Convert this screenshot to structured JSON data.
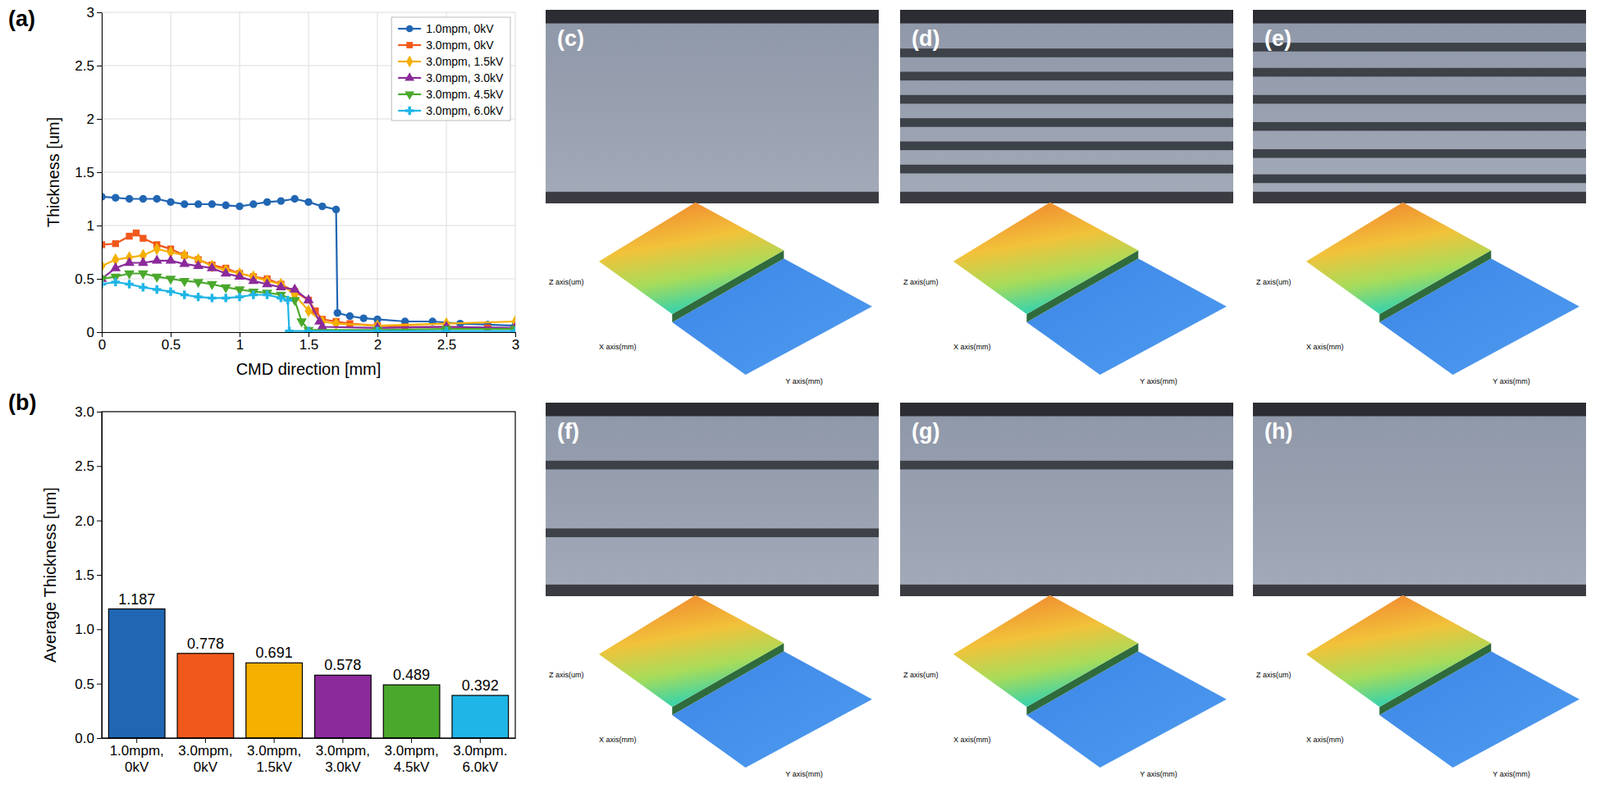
{
  "chart_data": [
    {
      "type": "line",
      "panel_label": "(a)",
      "x_label": "CMD direction [mm]",
      "y_label": "Thickness [um]",
      "xlim": [
        0,
        3
      ],
      "ylim": [
        0,
        3
      ],
      "xticks": [
        0,
        0.5,
        1,
        1.5,
        2,
        2.5,
        3
      ],
      "yticks": [
        0,
        0.5,
        1,
        1.5,
        2,
        2.5,
        3
      ],
      "grid": true,
      "legend": "top-right",
      "series": [
        {
          "name": "1.0mpm, 0kV",
          "color": "#2166b3",
          "marker": "circle",
          "x": [
            0,
            0.1,
            0.2,
            0.3,
            0.4,
            0.5,
            0.6,
            0.7,
            0.8,
            0.9,
            1.0,
            1.1,
            1.2,
            1.3,
            1.4,
            1.5,
            1.6,
            1.7,
            1.71,
            1.8,
            1.9,
            2.0,
            2.2,
            2.4,
            2.6,
            2.8,
            3.0
          ],
          "values": [
            1.27,
            1.26,
            1.25,
            1.25,
            1.25,
            1.22,
            1.2,
            1.2,
            1.2,
            1.19,
            1.18,
            1.2,
            1.22,
            1.23,
            1.25,
            1.22,
            1.18,
            1.15,
            0.18,
            0.15,
            0.13,
            0.12,
            0.1,
            0.1,
            0.08,
            0.07,
            0.06
          ]
        },
        {
          "name": "3.0mpm, 0kV",
          "color": "#f0581c",
          "marker": "square",
          "x": [
            0,
            0.1,
            0.2,
            0.25,
            0.3,
            0.4,
            0.5,
            0.6,
            0.7,
            0.8,
            0.9,
            1.0,
            1.1,
            1.2,
            1.3,
            1.4,
            1.5,
            1.55,
            1.6,
            1.7,
            1.8,
            2.0,
            2.2,
            2.5,
            2.8,
            3.0
          ],
          "values": [
            0.82,
            0.83,
            0.9,
            0.93,
            0.88,
            0.82,
            0.78,
            0.72,
            0.68,
            0.63,
            0.6,
            0.55,
            0.52,
            0.5,
            0.45,
            0.38,
            0.3,
            0.2,
            0.12,
            0.1,
            0.08,
            0.06,
            0.05,
            0.05,
            0.04,
            0.03
          ]
        },
        {
          "name": "3.0mpm, 1.5kV",
          "color": "#f5b000",
          "marker": "diamond",
          "x": [
            0,
            0.1,
            0.2,
            0.3,
            0.4,
            0.5,
            0.6,
            0.7,
            0.8,
            0.9,
            1.0,
            1.1,
            1.2,
            1.3,
            1.4,
            1.5,
            1.6,
            1.7,
            2.0,
            2.5,
            3.0
          ],
          "values": [
            0.62,
            0.68,
            0.7,
            0.72,
            0.78,
            0.75,
            0.72,
            0.68,
            0.62,
            0.58,
            0.55,
            0.52,
            0.48,
            0.45,
            0.35,
            0.2,
            0.1,
            0.08,
            0.06,
            0.08,
            0.1
          ]
        },
        {
          "name": "3.0mpm, 3.0kV",
          "color": "#8b2a9b",
          "marker": "triangle",
          "x": [
            0,
            0.1,
            0.2,
            0.3,
            0.4,
            0.5,
            0.6,
            0.7,
            0.8,
            0.9,
            1.0,
            1.1,
            1.2,
            1.3,
            1.4,
            1.5,
            1.58,
            1.6,
            2.0,
            2.5,
            3.0
          ],
          "values": [
            0.5,
            0.6,
            0.65,
            0.65,
            0.67,
            0.67,
            0.64,
            0.62,
            0.6,
            0.55,
            0.52,
            0.48,
            0.45,
            0.42,
            0.4,
            0.3,
            0.1,
            0.05,
            0.04,
            0.05,
            0.04
          ]
        },
        {
          "name": "3.0mpm. 4.5kV",
          "color": "#4aa82c",
          "marker": "triangle-down",
          "x": [
            0,
            0.1,
            0.2,
            0.3,
            0.4,
            0.5,
            0.6,
            0.7,
            0.8,
            0.9,
            1.0,
            1.1,
            1.2,
            1.3,
            1.4,
            1.45,
            1.5,
            2.0,
            2.5,
            3.0
          ],
          "values": [
            0.5,
            0.52,
            0.55,
            0.55,
            0.52,
            0.5,
            0.48,
            0.47,
            0.45,
            0.42,
            0.4,
            0.38,
            0.37,
            0.35,
            0.3,
            0.1,
            0.02,
            0.02,
            0.03,
            0.03
          ]
        },
        {
          "name": "3.0mpm, 6.0kV",
          "color": "#1fb5e6",
          "marker": "plus",
          "x": [
            0,
            0.1,
            0.2,
            0.3,
            0.4,
            0.5,
            0.6,
            0.7,
            0.8,
            0.9,
            1.0,
            1.1,
            1.2,
            1.3,
            1.35,
            1.36,
            1.5,
            2.0,
            2.5,
            3.0
          ],
          "values": [
            0.45,
            0.47,
            0.45,
            0.42,
            0.4,
            0.38,
            0.35,
            0.33,
            0.32,
            0.32,
            0.33,
            0.35,
            0.35,
            0.32,
            0.3,
            0.01,
            0.01,
            0.01,
            0.01,
            0.01
          ]
        }
      ]
    },
    {
      "type": "bar",
      "panel_label": "(b)",
      "y_label": "Average Thickness [um]",
      "categories": [
        "1.0mpm, 0kV",
        "3.0mpm, 0kV",
        "3.0mpm, 1.5kV",
        "3.0mpm, 3.0kV",
        "3.0mpm, 4.5kV",
        "3.0mpm. 6.0kV"
      ],
      "values": [
        1.187,
        0.778,
        0.691,
        0.578,
        0.489,
        0.392
      ],
      "colors": [
        "#2166b3",
        "#f0581c",
        "#f5b000",
        "#8b2a9b",
        "#4aa82c",
        "#1fb5e6"
      ],
      "ylim": [
        0,
        3
      ],
      "yticks": [
        {
          "value": 0,
          "label": "0.0"
        },
        {
          "value": 0.5,
          "label": "0.5"
        },
        {
          "value": 1,
          "label": "1.0"
        },
        {
          "value": 1.5,
          "label": "1.5"
        },
        {
          "value": 2,
          "label": "2.0"
        },
        {
          "value": 2.5,
          "label": "2.5"
        },
        {
          "value": 3,
          "label": "3.0"
        }
      ],
      "data_labels": true
    }
  ],
  "image_panels": [
    {
      "label": "(c)",
      "surface_axis_labels": {
        "x": "X axis(mm)",
        "y": "Y axis(mm)",
        "z": "Z axis(um)"
      }
    },
    {
      "label": "(d)",
      "surface_axis_labels": {
        "x": "X axis(mm)",
        "y": "Y axis(mm)",
        "z": "Z axis(um)"
      }
    },
    {
      "label": "(e)",
      "surface_axis_labels": {
        "x": "X axis(mm)",
        "y": "Y axis(mm)",
        "z": "Z axis(um)"
      }
    },
    {
      "label": "(f)",
      "surface_axis_labels": {
        "x": "X axis(mm)",
        "y": "Y axis(mm)",
        "z": "Z axis(um)"
      }
    },
    {
      "label": "(g)",
      "surface_axis_labels": {
        "x": "X axis(mm)",
        "y": "Y axis(mm)",
        "z": "Z axis(um)"
      }
    },
    {
      "label": "(h)",
      "surface_axis_labels": {
        "x": "X axis(mm)",
        "y": "Y axis(mm)",
        "z": "Z axis(um)"
      }
    }
  ]
}
